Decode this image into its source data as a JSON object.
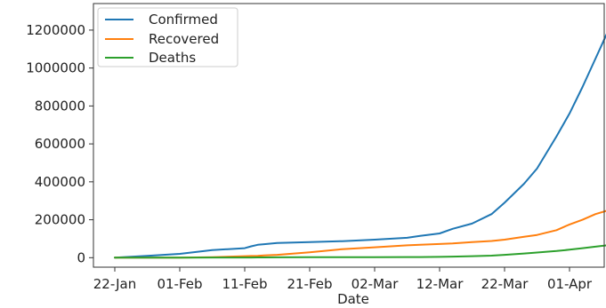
{
  "chart_data": {
    "type": "line",
    "xlabel": "Date",
    "ylabel": "",
    "ylim": [
      -50000,
      1340000
    ],
    "x_tick_labels": [
      "22-Jan",
      "01-Feb",
      "11-Feb",
      "21-Feb",
      "02-Mar",
      "12-Mar",
      "22-Mar",
      "01-Apr"
    ],
    "x_tick_day_index": [
      0,
      10,
      20,
      30,
      40,
      50,
      60,
      70
    ],
    "y_ticks": [
      0,
      200000,
      400000,
      600000,
      800000,
      1000000,
      1200000
    ],
    "y_tick_labels": [
      "0",
      "200000",
      "400000",
      "600000",
      "800000",
      "1000000",
      "1200000"
    ],
    "legend_position": "top-left",
    "grid": false,
    "x_day_index": [
      0,
      5,
      10,
      15,
      20,
      21,
      22,
      23,
      25,
      30,
      35,
      40,
      45,
      47,
      50,
      52,
      55,
      58,
      60,
      63,
      65,
      68,
      70,
      72,
      74,
      76,
      78
    ],
    "series": [
      {
        "name": "Confirmed",
        "color": "#1f77b4",
        "values": [
          555,
          9927,
          20000,
          40000,
          50000,
          60000,
          68000,
          71000,
          78000,
          82000,
          87000,
          95000,
          105000,
          115000,
          128000,
          152000,
          180000,
          230000,
          290000,
          390000,
          470000,
          640000,
          760000,
          900000,
          1050000,
          1200000,
          1275000
        ]
      },
      {
        "name": "Recovered",
        "color": "#ff7f0e",
        "values": [
          28,
          200,
          600,
          3000,
          8000,
          9000,
          10000,
          12000,
          15000,
          28000,
          45000,
          55000,
          65000,
          68000,
          72000,
          75000,
          82000,
          88000,
          95000,
          110000,
          120000,
          145000,
          175000,
          200000,
          230000,
          250000,
          262000
        ]
      },
      {
        "name": "Deaths",
        "color": "#2ca02c",
        "values": [
          17,
          200,
          400,
          900,
          1100,
          1200,
          1300,
          1400,
          2000,
          2500,
          2800,
          3100,
          3400,
          3500,
          4500,
          5500,
          8000,
          11000,
          15000,
          22000,
          27000,
          35000,
          42000,
          50000,
          58000,
          66000,
          72000
        ]
      }
    ]
  }
}
